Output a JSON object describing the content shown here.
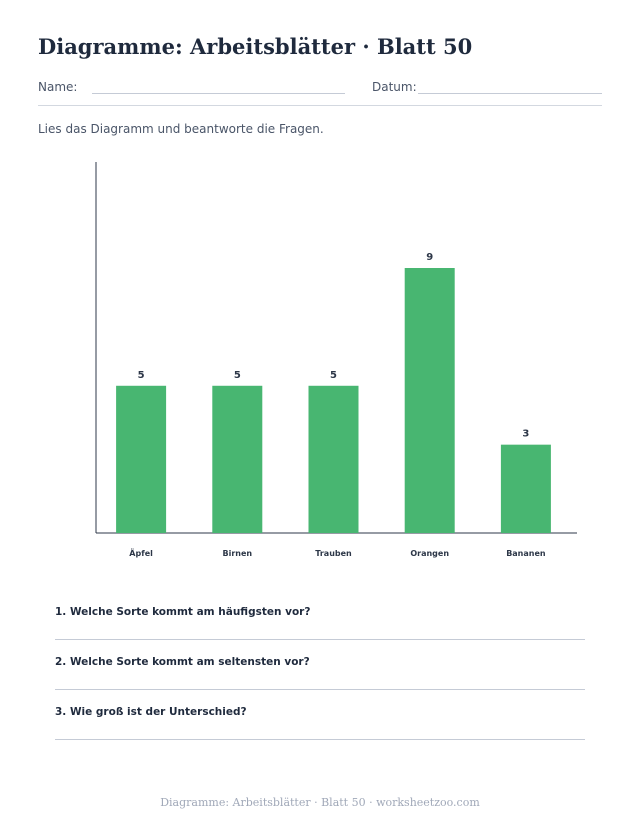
{
  "title": "Diagramme: Arbeitsblätter · Blatt 50",
  "name_label": "Name:",
  "date_label": "Datum:",
  "instruction": "Lies das Diagramm und beantworte die Fragen.",
  "chart_data": {
    "type": "bar",
    "categories": [
      "Äpfel",
      "Birnen",
      "Trauben",
      "Orangen",
      "Bananen"
    ],
    "values": [
      5,
      5,
      5,
      9,
      3
    ],
    "ylim": [
      0,
      12.6
    ],
    "grid": false,
    "bar_color": "#48b671"
  },
  "questions": [
    "1. Welche Sorte kommt am häufigsten vor?",
    "2. Welche Sorte kommt am seltensten vor?",
    "3. Wie groß ist der Unterschied?"
  ],
  "footer": "Diagramme: Arbeitsblätter · Blatt 50 · worksheetzoo.com"
}
